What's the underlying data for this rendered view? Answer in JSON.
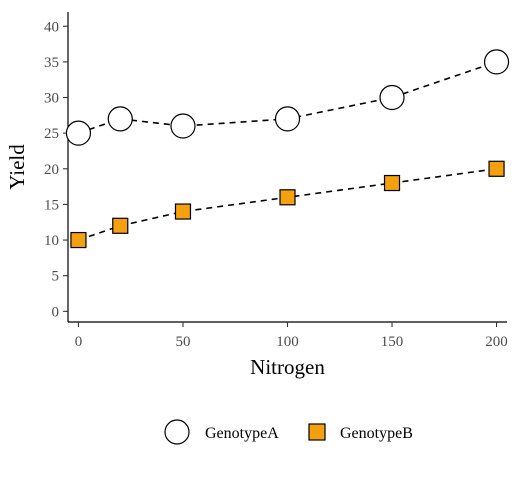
{
  "chart_data": {
    "type": "line",
    "title": "",
    "xlabel": "Nitrogen",
    "ylabel": "Yield",
    "xlim": [
      -5,
      205
    ],
    "ylim": [
      -1.5,
      42
    ],
    "xticks": [
      0,
      50,
      100,
      150,
      200
    ],
    "yticks": [
      0,
      5,
      10,
      15,
      20,
      25,
      30,
      35,
      40
    ],
    "grid": false,
    "legend_position": "bottom",
    "x": [
      0,
      20,
      50,
      100,
      150,
      200
    ],
    "series": [
      {
        "name": "GenotypeA",
        "values": [
          25,
          27,
          26,
          27,
          30,
          35
        ],
        "marker": "circle",
        "fill": "#ffffff",
        "stroke": "#000000",
        "line": "dashed"
      },
      {
        "name": "GenotypeB",
        "values": [
          10,
          12,
          14,
          16,
          18,
          20
        ],
        "marker": "square",
        "fill": "#f5a00e",
        "stroke": "#000000",
        "line": "dashed"
      }
    ]
  }
}
